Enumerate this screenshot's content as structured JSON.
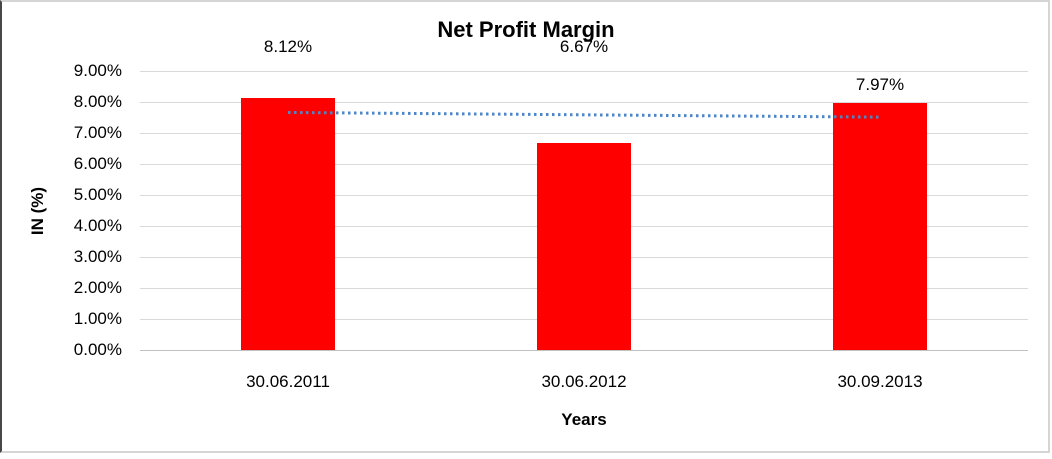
{
  "chart_data": {
    "type": "bar",
    "title": "Net Profit Margin",
    "xlabel": "Years",
    "ylabel": "IN (%)",
    "categories": [
      "30.06.2011",
      "30.06.2012",
      "30.09.2013"
    ],
    "values": [
      8.12,
      6.67,
      7.97
    ],
    "data_labels": [
      "8.12%",
      "6.67%",
      "7.97%"
    ],
    "label_placement": [
      "chart-top",
      "chart-top",
      "above-bar"
    ],
    "ylim": [
      0,
      9
    ],
    "ytick_step": 1,
    "yticks": [
      "0.00%",
      "1.00%",
      "2.00%",
      "3.00%",
      "4.00%",
      "5.00%",
      "6.00%",
      "7.00%",
      "8.00%",
      "9.00%"
    ],
    "grid": true,
    "legend": "none",
    "bar_color": "#ff0000",
    "gridline_color": "#d9d9d9",
    "axis_line_color": "#c0c0c0",
    "trendline": {
      "type": "linear",
      "style": "dotted",
      "color": "#4f86c6"
    }
  }
}
